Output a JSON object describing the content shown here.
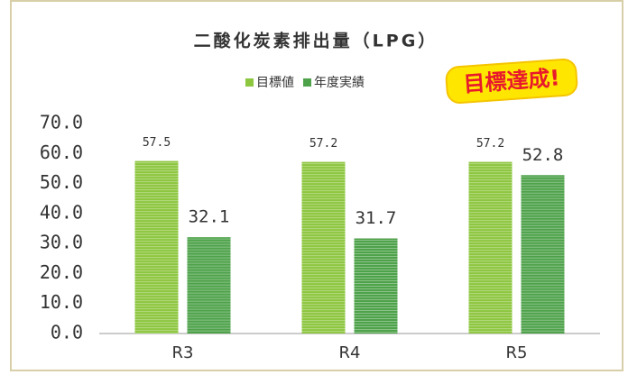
{
  "chart_data": {
    "type": "bar",
    "title": "二酸化炭素排出量（LPG）",
    "categories": [
      "R3",
      "R4",
      "R5"
    ],
    "series": [
      {
        "name": "目標値",
        "color": "#8dc63f",
        "values": [
          57.5,
          57.2,
          57.2
        ]
      },
      {
        "name": "年度実績",
        "color": "#4ea24a",
        "values": [
          32.1,
          31.7,
          52.8
        ]
      }
    ],
    "ylim": [
      0,
      70
    ],
    "yticks": [
      {
        "value": 0,
        "label": "0.0"
      },
      {
        "value": 10,
        "label": "10.0"
      },
      {
        "value": 20,
        "label": "20.0"
      },
      {
        "value": 30,
        "label": "30.0"
      },
      {
        "value": 40,
        "label": "40.0"
      },
      {
        "value": 50,
        "label": "50.0"
      },
      {
        "value": 60,
        "label": "60.0"
      },
      {
        "value": 70,
        "label": "70.0"
      }
    ],
    "legend": "top",
    "annotation": "目標達成!"
  }
}
